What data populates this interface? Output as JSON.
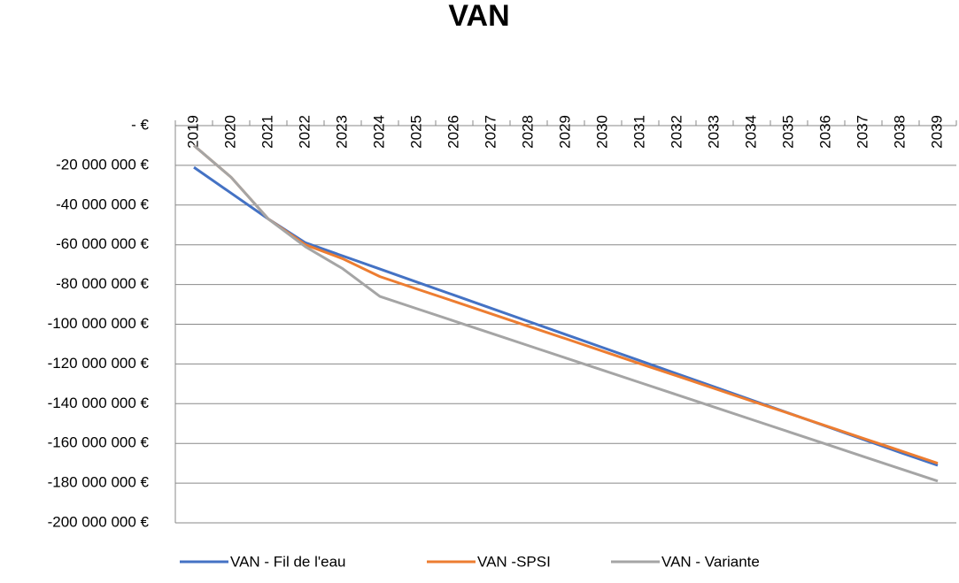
{
  "chart_data": {
    "type": "line",
    "title": "VAN",
    "categories": [
      "2019",
      "2020",
      "2021",
      "2022",
      "2023",
      "2024",
      "2025",
      "2026",
      "2027",
      "2028",
      "2029",
      "2030",
      "2031",
      "2032",
      "2033",
      "2034",
      "2035",
      "2036",
      "2037",
      "2038",
      "2039"
    ],
    "series": [
      {
        "name": "VAN - Fil de l'eau",
        "color": "#4472c4",
        "values": [
          -21000000,
          -34000000,
          -47000000,
          -59000000,
          -65600000,
          -72200000,
          -78800000,
          -85400000,
          -92000000,
          -98600000,
          -105200000,
          -111800000,
          -118400000,
          -125000000,
          -131600000,
          -138200000,
          -144800000,
          -151400000,
          -158000000,
          -164600000,
          -171000000
        ]
      },
      {
        "name": "VAN -SPSI",
        "color": "#ed7d31",
        "values": [
          -10000000,
          -26000000,
          -47000000,
          -60000000,
          -67000000,
          -76000000,
          -82300000,
          -88500000,
          -94800000,
          -101100000,
          -107300000,
          -113600000,
          -119900000,
          -126100000,
          -132400000,
          -138700000,
          -144900000,
          -151200000,
          -157500000,
          -163700000,
          -170000000
        ]
      },
      {
        "name": "VAN - Variante",
        "color": "#a5a5a5",
        "values": [
          -10000000,
          -26000000,
          -47000000,
          -61000000,
          -72000000,
          -86000000,
          -92200000,
          -98400000,
          -104600000,
          -110800000,
          -117000000,
          -123200000,
          -129400000,
          -135600000,
          -141800000,
          -148000000,
          -154200000,
          -160400000,
          -166600000,
          -172800000,
          -179000000
        ]
      }
    ],
    "ylim": [
      -200000000,
      0
    ],
    "yticks": [
      {
        "value": 0,
        "label": "-   €"
      },
      {
        "value": -20000000,
        "label": "-20 000 000 €"
      },
      {
        "value": -40000000,
        "label": "-40 000 000 €"
      },
      {
        "value": -60000000,
        "label": "-60 000 000 €"
      },
      {
        "value": -80000000,
        "label": "-80 000 000 €"
      },
      {
        "value": -100000000,
        "label": "-100 000 000 €"
      },
      {
        "value": -120000000,
        "label": "-120 000 000 €"
      },
      {
        "value": -140000000,
        "label": "-140 000 000 €"
      },
      {
        "value": -160000000,
        "label": "-160 000 000 €"
      },
      {
        "value": -180000000,
        "label": "-180 000 000 €"
      },
      {
        "value": -200000000,
        "label": "-200 000 000 €"
      }
    ],
    "grid": true,
    "legend": "bottom"
  }
}
